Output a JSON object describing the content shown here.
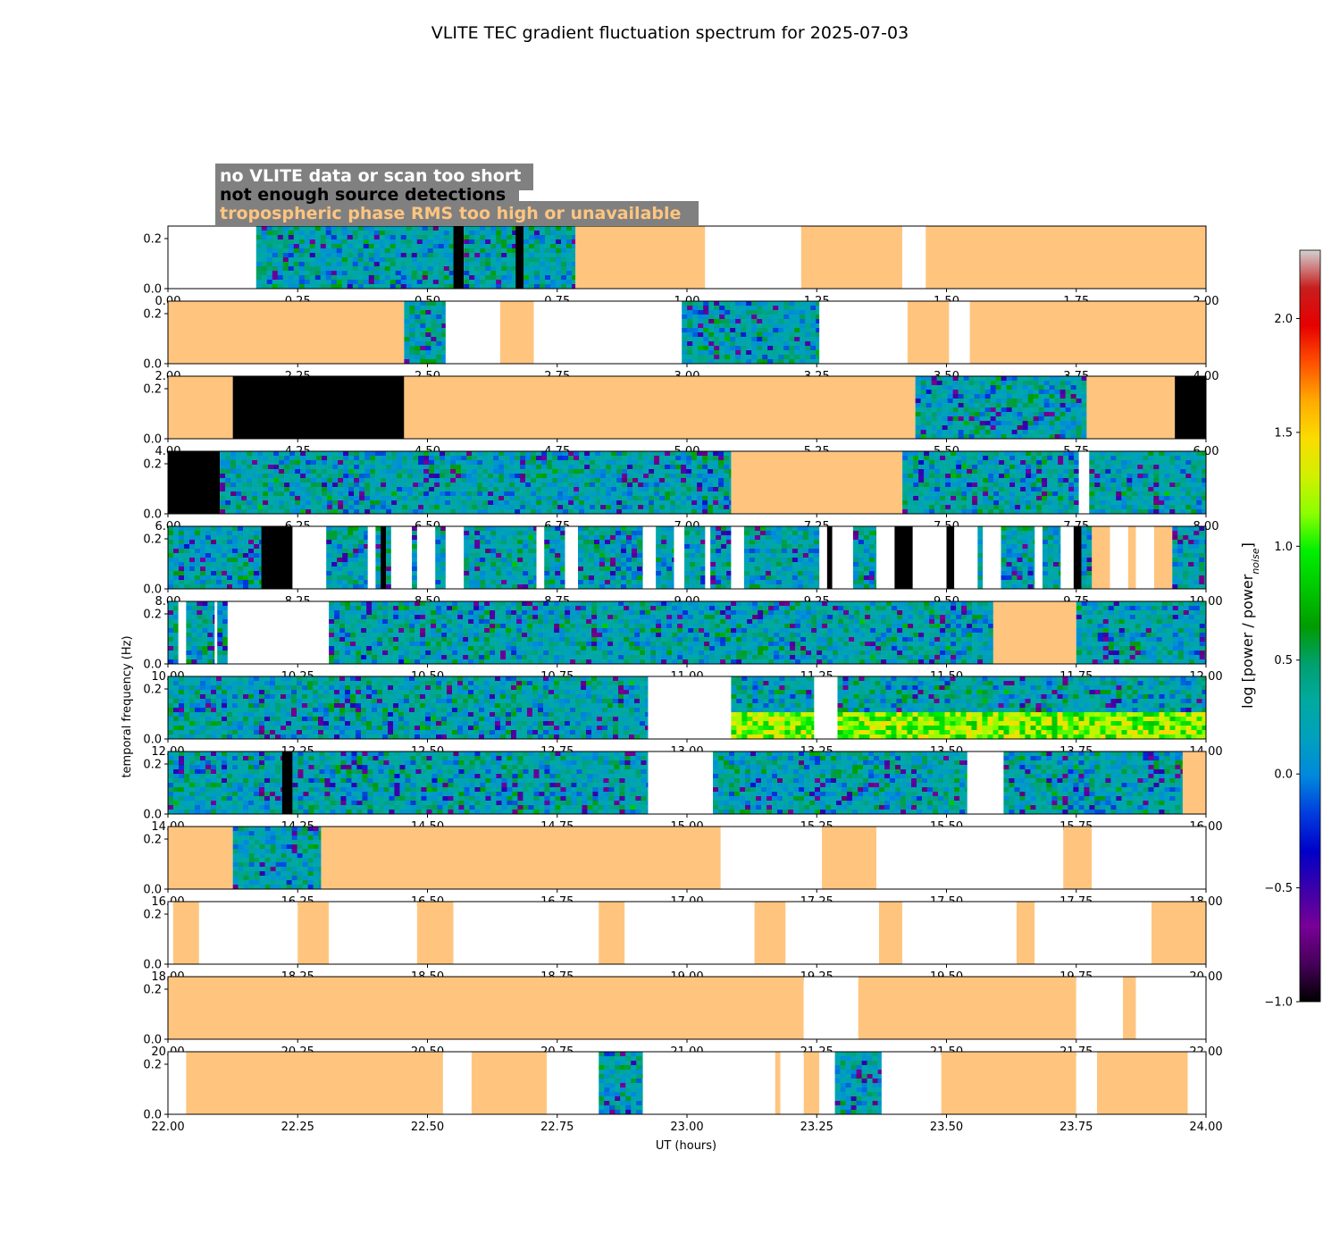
{
  "chart_data": {
    "type": "heatmap",
    "title": "VLITE TEC gradient fluctuation spectrum for 2025-07-03",
    "xlabel": "UT (hours)",
    "ylabel": "temporal frequency (Hz)",
    "ylim": [
      0,
      0.25
    ],
    "y_ticks": [
      "0.0",
      "0.2"
    ],
    "colorbar": {
      "label": "log [power / power",
      "label_sub": "noise",
      "label_close": "]",
      "range": [
        -1.0,
        2.3
      ],
      "ticks": [
        -1.0,
        -0.5,
        0.0,
        0.5,
        1.0,
        1.5,
        2.0
      ],
      "tick_labels": [
        "−1.0",
        "−0.5",
        "0.0",
        "0.5",
        "1.0",
        "1.5",
        "2.0"
      ],
      "colormap": "nipy_spectral"
    },
    "legend": [
      {
        "label": "no VLITE data or scan too short",
        "color": "#ffffff"
      },
      {
        "label": "not enough source detections",
        "color": "#000000"
      },
      {
        "label": "tropospheric phase RMS too high or unavailable",
        "color": "#ffc57f"
      }
    ],
    "legend_background": "#808080",
    "flag_colors": {
      "none": "#ffffff",
      "black": "#000000",
      "tropo": "#ffc57f"
    },
    "panels": [
      {
        "x_range": [
          0,
          2
        ],
        "x_tick_labels": [
          "0.00",
          "0.25",
          "0.50",
          "0.75",
          "1.00",
          "1.25",
          "1.50",
          "1.75",
          "2.00"
        ],
        "segments": [
          [
            0.0,
            0.17,
            "none"
          ],
          [
            0.17,
            0.55,
            "data"
          ],
          [
            0.55,
            0.57,
            "black"
          ],
          [
            0.57,
            0.67,
            "data"
          ],
          [
            0.67,
            0.685,
            "black"
          ],
          [
            0.685,
            0.785,
            "data"
          ],
          [
            0.785,
            1.035,
            "tropo"
          ],
          [
            1.035,
            1.22,
            "none"
          ],
          [
            1.22,
            1.415,
            "tropo"
          ],
          [
            1.415,
            1.46,
            "none"
          ],
          [
            1.46,
            2.0,
            "tropo"
          ]
        ]
      },
      {
        "x_range": [
          2,
          4
        ],
        "x_tick_labels": [
          "2.00",
          "2.25",
          "2.50",
          "2.75",
          "3.00",
          "3.25",
          "3.50",
          "3.75",
          "4.00"
        ],
        "segments": [
          [
            2.0,
            2.455,
            "tropo"
          ],
          [
            2.455,
            2.535,
            "data"
          ],
          [
            2.535,
            2.64,
            "none"
          ],
          [
            2.64,
            2.705,
            "tropo"
          ],
          [
            2.705,
            2.99,
            "none"
          ],
          [
            2.99,
            3.255,
            "data"
          ],
          [
            3.255,
            3.425,
            "none"
          ],
          [
            3.425,
            3.505,
            "tropo"
          ],
          [
            3.505,
            3.545,
            "none"
          ],
          [
            3.545,
            4.0,
            "tropo"
          ]
        ]
      },
      {
        "x_range": [
          4,
          6
        ],
        "x_tick_labels": [
          "4.00",
          "4.25",
          "4.50",
          "4.75",
          "5.00",
          "5.25",
          "5.50",
          "5.75",
          "6.00"
        ],
        "segments": [
          [
            4.0,
            4.125,
            "tropo"
          ],
          [
            4.125,
            4.455,
            "black"
          ],
          [
            4.455,
            5.44,
            "tropo"
          ],
          [
            5.44,
            5.77,
            "data"
          ],
          [
            5.77,
            5.94,
            "tropo"
          ],
          [
            5.94,
            6.0,
            "black"
          ]
        ]
      },
      {
        "x_range": [
          6,
          8
        ],
        "x_tick_labels": [
          "6.00",
          "6.25",
          "6.50",
          "6.75",
          "7.00",
          "7.25",
          "7.50",
          "7.75",
          "8.00"
        ],
        "segments": [
          [
            6.0,
            6.1,
            "black"
          ],
          [
            6.1,
            7.085,
            "data"
          ],
          [
            7.085,
            7.415,
            "tropo"
          ],
          [
            7.415,
            7.755,
            "data"
          ],
          [
            7.755,
            7.775,
            "none"
          ],
          [
            7.775,
            8.0,
            "data"
          ]
        ]
      },
      {
        "x_range": [
          8,
          10
        ],
        "x_tick_labels": [
          "8.00",
          "8.25",
          "8.50",
          "8.75",
          "9.00",
          "9.25",
          "9.50",
          "9.75",
          "10.00"
        ],
        "segments": [
          [
            8.0,
            8.18,
            "data"
          ],
          [
            8.18,
            8.24,
            "black"
          ],
          [
            8.24,
            8.305,
            "none"
          ],
          [
            8.305,
            8.385,
            "data"
          ],
          [
            8.385,
            8.4,
            "none"
          ],
          [
            8.4,
            8.41,
            "data"
          ],
          [
            8.41,
            8.42,
            "black"
          ],
          [
            8.42,
            8.43,
            "data"
          ],
          [
            8.43,
            8.47,
            "none"
          ],
          [
            8.47,
            8.48,
            "data"
          ],
          [
            8.48,
            8.515,
            "none"
          ],
          [
            8.515,
            8.535,
            "data"
          ],
          [
            8.535,
            8.57,
            "none"
          ],
          [
            8.57,
            8.71,
            "data"
          ],
          [
            8.71,
            8.725,
            "none"
          ],
          [
            8.725,
            8.765,
            "data"
          ],
          [
            8.765,
            8.79,
            "none"
          ],
          [
            8.79,
            8.915,
            "data"
          ],
          [
            8.915,
            8.94,
            "none"
          ],
          [
            8.94,
            8.975,
            "data"
          ],
          [
            8.975,
            8.995,
            "none"
          ],
          [
            8.995,
            9.035,
            "data"
          ],
          [
            9.035,
            9.045,
            "none"
          ],
          [
            9.045,
            9.085,
            "data"
          ],
          [
            9.085,
            9.11,
            "none"
          ],
          [
            9.11,
            9.255,
            "data"
          ],
          [
            9.255,
            9.27,
            "none"
          ],
          [
            9.27,
            9.28,
            "black"
          ],
          [
            9.28,
            9.32,
            "none"
          ],
          [
            9.32,
            9.365,
            "data"
          ],
          [
            9.365,
            9.4,
            "none"
          ],
          [
            9.4,
            9.435,
            "black"
          ],
          [
            9.435,
            9.5,
            "none"
          ],
          [
            9.5,
            9.515,
            "black"
          ],
          [
            9.515,
            9.56,
            "none"
          ],
          [
            9.56,
            9.57,
            "data"
          ],
          [
            9.57,
            9.605,
            "none"
          ],
          [
            9.605,
            9.67,
            "data"
          ],
          [
            9.67,
            9.685,
            "none"
          ],
          [
            9.685,
            9.72,
            "data"
          ],
          [
            9.72,
            9.745,
            "none"
          ],
          [
            9.745,
            9.76,
            "black"
          ],
          [
            9.76,
            9.78,
            "data"
          ],
          [
            9.78,
            9.815,
            "tropo"
          ],
          [
            9.815,
            9.85,
            "none"
          ],
          [
            9.85,
            9.865,
            "tropo"
          ],
          [
            9.865,
            9.9,
            "none"
          ],
          [
            9.9,
            9.935,
            "tropo"
          ],
          [
            9.935,
            10.0,
            "data"
          ]
        ]
      },
      {
        "x_range": [
          10,
          12
        ],
        "x_tick_labels": [
          "10.00",
          "10.25",
          "10.50",
          "10.75",
          "11.00",
          "11.25",
          "11.50",
          "11.75",
          "12.00"
        ],
        "segments": [
          [
            10.0,
            10.02,
            "data"
          ],
          [
            10.02,
            10.035,
            "none"
          ],
          [
            10.035,
            10.09,
            "data"
          ],
          [
            10.09,
            10.095,
            "none"
          ],
          [
            10.095,
            10.115,
            "data"
          ],
          [
            10.115,
            10.31,
            "none"
          ],
          [
            10.31,
            11.59,
            "data"
          ],
          [
            11.59,
            11.75,
            "tropo"
          ],
          [
            11.75,
            12.0,
            "data"
          ]
        ]
      },
      {
        "x_range": [
          12,
          14
        ],
        "x_tick_labels": [
          "12.00",
          "12.25",
          "12.50",
          "12.75",
          "13.00",
          "13.25",
          "13.50",
          "13.75",
          "14.00"
        ],
        "segments": [
          [
            12.0,
            12.925,
            "data"
          ],
          [
            12.925,
            13.085,
            "none"
          ],
          [
            13.085,
            13.245,
            "data"
          ],
          [
            13.245,
            13.29,
            "none"
          ],
          [
            13.29,
            14.0,
            "data"
          ]
        ]
      },
      {
        "x_range": [
          14,
          16
        ],
        "x_tick_labels": [
          "14.00",
          "14.25",
          "14.50",
          "14.75",
          "15.00",
          "15.25",
          "15.50",
          "15.75",
          "16.00"
        ],
        "segments": [
          [
            14.0,
            14.22,
            "data"
          ],
          [
            14.22,
            14.24,
            "black"
          ],
          [
            14.24,
            14.925,
            "data"
          ],
          [
            14.925,
            15.05,
            "none"
          ],
          [
            15.05,
            15.54,
            "data"
          ],
          [
            15.54,
            15.61,
            "none"
          ],
          [
            15.61,
            15.955,
            "data"
          ],
          [
            15.955,
            16.0,
            "tropo"
          ]
        ]
      },
      {
        "x_range": [
          16,
          18
        ],
        "x_tick_labels": [
          "16.00",
          "16.25",
          "16.50",
          "16.75",
          "17.00",
          "17.25",
          "17.50",
          "17.75",
          "18.00"
        ],
        "segments": [
          [
            16.0,
            16.125,
            "tropo"
          ],
          [
            16.125,
            16.295,
            "data"
          ],
          [
            16.295,
            17.065,
            "tropo"
          ],
          [
            17.065,
            17.26,
            "none"
          ],
          [
            17.26,
            17.365,
            "tropo"
          ],
          [
            17.365,
            17.725,
            "none"
          ],
          [
            17.725,
            17.78,
            "tropo"
          ],
          [
            17.78,
            18.0,
            "none"
          ]
        ]
      },
      {
        "x_range": [
          18,
          20
        ],
        "x_tick_labels": [
          "18.00",
          "18.25",
          "18.50",
          "18.75",
          "19.00",
          "19.25",
          "19.50",
          "19.75",
          "20.00"
        ],
        "segments": [
          [
            18.0,
            18.01,
            "none"
          ],
          [
            18.01,
            18.06,
            "tropo"
          ],
          [
            18.06,
            18.25,
            "none"
          ],
          [
            18.25,
            18.31,
            "tropo"
          ],
          [
            18.31,
            18.48,
            "none"
          ],
          [
            18.48,
            18.55,
            "tropo"
          ],
          [
            18.55,
            18.83,
            "none"
          ],
          [
            18.83,
            18.88,
            "tropo"
          ],
          [
            18.88,
            19.13,
            "none"
          ],
          [
            19.13,
            19.19,
            "tropo"
          ],
          [
            19.19,
            19.37,
            "none"
          ],
          [
            19.37,
            19.415,
            "tropo"
          ],
          [
            19.415,
            19.635,
            "none"
          ],
          [
            19.635,
            19.67,
            "tropo"
          ],
          [
            19.67,
            19.895,
            "none"
          ],
          [
            19.895,
            20.0,
            "tropo"
          ]
        ]
      },
      {
        "x_range": [
          20,
          22
        ],
        "x_tick_labels": [
          "20.00",
          "20.25",
          "20.50",
          "20.75",
          "21.00",
          "21.25",
          "21.50",
          "21.75",
          "22.00"
        ],
        "segments": [
          [
            20.0,
            21.225,
            "tropo"
          ],
          [
            21.225,
            21.33,
            "none"
          ],
          [
            21.33,
            21.75,
            "tropo"
          ],
          [
            21.75,
            21.84,
            "none"
          ],
          [
            21.84,
            21.865,
            "tropo"
          ],
          [
            21.865,
            22.0,
            "none"
          ]
        ]
      },
      {
        "x_range": [
          22,
          24
        ],
        "x_tick_labels": [
          "22.00",
          "22.25",
          "22.50",
          "22.75",
          "23.00",
          "23.25",
          "23.50",
          "23.75",
          "24.00"
        ],
        "segments": [
          [
            22.0,
            22.035,
            "none"
          ],
          [
            22.035,
            22.53,
            "tropo"
          ],
          [
            22.53,
            22.585,
            "none"
          ],
          [
            22.585,
            22.73,
            "tropo"
          ],
          [
            22.73,
            22.83,
            "none"
          ],
          [
            22.83,
            22.915,
            "data"
          ],
          [
            22.915,
            23.17,
            "none"
          ],
          [
            23.17,
            23.18,
            "tropo"
          ],
          [
            23.18,
            23.225,
            "none"
          ],
          [
            23.225,
            23.255,
            "tropo"
          ],
          [
            23.255,
            23.285,
            "none"
          ],
          [
            23.285,
            23.375,
            "data"
          ],
          [
            23.375,
            23.49,
            "none"
          ],
          [
            23.49,
            23.75,
            "tropo"
          ],
          [
            23.75,
            23.79,
            "none"
          ],
          [
            23.79,
            23.965,
            "tropo"
          ],
          [
            23.965,
            24.0,
            "none"
          ]
        ]
      }
    ]
  }
}
